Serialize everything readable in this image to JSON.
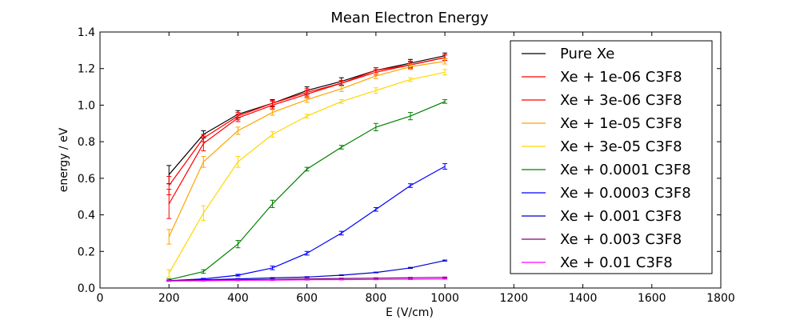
{
  "chart_data": {
    "type": "line",
    "title": "Mean Electron Energy",
    "xlabel": "E (V/cm)",
    "ylabel": "energy / eV",
    "xlim": [
      0,
      1800
    ],
    "ylim": [
      0,
      1.4
    ],
    "xticks": [
      0,
      200,
      400,
      600,
      800,
      1000,
      1200,
      1400,
      1600,
      1800
    ],
    "xtick_labels": [
      "0",
      "200",
      "400",
      "600",
      "800",
      "1000",
      "1200",
      "1400",
      "1600",
      "1800"
    ],
    "yticks": [
      0,
      0.2,
      0.4,
      0.6,
      0.8,
      1.0,
      1.2,
      1.4
    ],
    "ytick_labels": [
      "0.0",
      "0.2",
      "0.4",
      "0.6",
      "0.8",
      "1.0",
      "1.2",
      "1.4"
    ],
    "legend_position": "top-right",
    "x": [
      200,
      300,
      400,
      500,
      600,
      700,
      800,
      900,
      1000
    ],
    "series": [
      {
        "name": "Pure Xe",
        "color": "#000000",
        "values": [
          0.62,
          0.84,
          0.95,
          1.01,
          1.08,
          1.13,
          1.19,
          1.23,
          1.27
        ],
        "errors": [
          0.05,
          0.02,
          0.02,
          0.02,
          0.02,
          0.02,
          0.015,
          0.02,
          0.015
        ]
      },
      {
        "name": "Xe + 1e-06 C3F8",
        "color": "#ff0000",
        "values": [
          0.56,
          0.82,
          0.94,
          1.01,
          1.07,
          1.12,
          1.19,
          1.22,
          1.26
        ],
        "errors": [
          0.05,
          0.02,
          0.02,
          0.015,
          0.02,
          0.015,
          0.015,
          0.02,
          0.015
        ]
      },
      {
        "name": "Xe + 3e-06 C3F8",
        "color": "#ff0000",
        "values": [
          0.46,
          0.79,
          0.93,
          1.0,
          1.06,
          1.12,
          1.18,
          1.22,
          1.26
        ],
        "errors": [
          0.08,
          0.04,
          0.02,
          0.02,
          0.02,
          0.015,
          0.015,
          0.015,
          0.015
        ]
      },
      {
        "name": "Xe + 1e-05 C3F8",
        "color": "#ffa500",
        "values": [
          0.28,
          0.69,
          0.86,
          0.96,
          1.03,
          1.09,
          1.16,
          1.21,
          1.24
        ],
        "errors": [
          0.04,
          0.03,
          0.02,
          0.015,
          0.015,
          0.015,
          0.015,
          0.015,
          0.015
        ]
      },
      {
        "name": "Xe + 3e-05 C3F8",
        "color": "#ffd700",
        "values": [
          0.08,
          0.41,
          0.69,
          0.84,
          0.94,
          1.02,
          1.08,
          1.14,
          1.18
        ],
        "errors": [
          0.02,
          0.04,
          0.03,
          0.015,
          0.01,
          0.01,
          0.015,
          0.01,
          0.015
        ]
      },
      {
        "name": "Xe + 0.0001 C3F8",
        "color": "#008000",
        "values": [
          0.045,
          0.09,
          0.24,
          0.46,
          0.65,
          0.77,
          0.88,
          0.94,
          1.02
        ],
        "errors": [
          0.005,
          0.01,
          0.02,
          0.02,
          0.01,
          0.01,
          0.02,
          0.02,
          0.01
        ]
      },
      {
        "name": "Xe + 0.0003 C3F8",
        "color": "#0000ff",
        "values": [
          0.04,
          0.05,
          0.07,
          0.11,
          0.19,
          0.3,
          0.43,
          0.56,
          0.665
        ],
        "errors": [
          0.003,
          0.003,
          0.005,
          0.01,
          0.01,
          0.01,
          0.01,
          0.01,
          0.015
        ]
      },
      {
        "name": "Xe + 0.001 C3F8",
        "color": "#0000cd",
        "values": [
          0.04,
          0.045,
          0.05,
          0.055,
          0.06,
          0.07,
          0.085,
          0.11,
          0.15
        ],
        "errors": [
          0.002,
          0.002,
          0.002,
          0.002,
          0.002,
          0.002,
          0.002,
          0.003,
          0.003
        ]
      },
      {
        "name": "Xe + 0.003 C3F8",
        "color": "#800080",
        "values": [
          0.04,
          0.042,
          0.045,
          0.047,
          0.05,
          0.052,
          0.054,
          0.056,
          0.058
        ],
        "errors": [
          0.002,
          0.002,
          0.002,
          0.002,
          0.002,
          0.002,
          0.002,
          0.002,
          0.002
        ]
      },
      {
        "name": "Xe + 0.01 C3F8",
        "color": "#ff00ff",
        "values": [
          0.038,
          0.04,
          0.042,
          0.043,
          0.045,
          0.046,
          0.047,
          0.048,
          0.05
        ],
        "errors": [
          0.002,
          0.002,
          0.002,
          0.002,
          0.002,
          0.002,
          0.002,
          0.002,
          0.002
        ]
      }
    ]
  }
}
